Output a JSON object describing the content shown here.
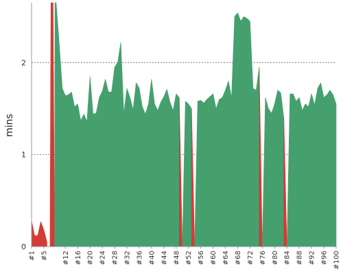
{
  "chart_data": {
    "type": "area",
    "ylabel": "mins",
    "ylim": [
      0,
      2.65
    ],
    "yticks": [
      0,
      1,
      2
    ],
    "xlim": [
      1,
      100
    ],
    "grid": "horizontal dashed",
    "colors": {
      "passed": "#46a06e",
      "failed": "#d43b35"
    },
    "x_tick_labels": [
      "#1",
      "#5",
      "#12",
      "#16",
      "#20",
      "#24",
      "#28",
      "#32",
      "#36",
      "#40",
      "#44",
      "#48",
      "#52",
      "#56",
      "#60",
      "#64",
      "#68",
      "#72",
      "#76",
      "#80",
      "#84",
      "#88",
      "#92",
      "#96",
      "#100"
    ],
    "series": [
      {
        "status": "failed",
        "points": [
          [
            1,
            0.28
          ],
          [
            2,
            0.12
          ],
          [
            3,
            0.12
          ],
          [
            4,
            0.27
          ],
          [
            5,
            0.18
          ],
          [
            6,
            0.05
          ]
        ]
      },
      {
        "status": "failed",
        "points": [
          [
            7,
            0
          ],
          [
            7.3,
            2.65
          ],
          [
            8,
            2.65
          ],
          [
            8.5,
            0
          ]
        ]
      },
      {
        "status": "passed",
        "points": [
          [
            8.5,
            0
          ],
          [
            8.6,
            2.65
          ],
          [
            9,
            2.65
          ],
          [
            10,
            2.2
          ],
          [
            11,
            1.72
          ],
          [
            12,
            1.64
          ],
          [
            13,
            1.65
          ],
          [
            14,
            1.68
          ],
          [
            15,
            1.52
          ],
          [
            16,
            1.55
          ],
          [
            17,
            1.37
          ],
          [
            18,
            1.44
          ],
          [
            19,
            1.36
          ],
          [
            20,
            1.85
          ],
          [
            21,
            1.44
          ],
          [
            22,
            1.45
          ],
          [
            23,
            1.62
          ],
          [
            24,
            1.69
          ],
          [
            25,
            1.82
          ],
          [
            26,
            1.68
          ],
          [
            27,
            1.68
          ],
          [
            28,
            1.95
          ],
          [
            29,
            2.0
          ],
          [
            30,
            2.22
          ],
          [
            31,
            1.45
          ],
          [
            32,
            1.72
          ],
          [
            33,
            1.62
          ],
          [
            34,
            1.49
          ],
          [
            35,
            1.78
          ],
          [
            36,
            1.72
          ],
          [
            37,
            1.52
          ],
          [
            38,
            1.44
          ],
          [
            39,
            1.55
          ],
          [
            40,
            1.82
          ],
          [
            41,
            1.55
          ],
          [
            42,
            1.48
          ],
          [
            43,
            1.57
          ],
          [
            44,
            1.63
          ],
          [
            45,
            1.71
          ],
          [
            46,
            1.57
          ],
          [
            47,
            1.48
          ],
          [
            48,
            1.66
          ],
          [
            49,
            1.62
          ]
        ]
      },
      {
        "status": "failed",
        "points": [
          [
            49,
            1.62
          ],
          [
            50,
            0
          ]
        ]
      },
      {
        "status": "passed",
        "points": [
          [
            50,
            0
          ],
          [
            51,
            1.58
          ],
          [
            52,
            1.55
          ],
          [
            53,
            1.5
          ]
        ]
      },
      {
        "status": "failed",
        "points": [
          [
            53,
            1.5
          ],
          [
            54,
            0
          ]
        ]
      },
      {
        "status": "passed",
        "points": [
          [
            54,
            0
          ],
          [
            55,
            1.58
          ],
          [
            56,
            1.59
          ],
          [
            57,
            1.56
          ],
          [
            58,
            1.6
          ],
          [
            59,
            1.63
          ],
          [
            60,
            1.66
          ],
          [
            61,
            1.5
          ],
          [
            62,
            1.6
          ],
          [
            63,
            1.62
          ],
          [
            64,
            1.7
          ],
          [
            65,
            1.8
          ],
          [
            66,
            1.62
          ],
          [
            67,
            2.5
          ],
          [
            68,
            2.54
          ],
          [
            69,
            2.45
          ],
          [
            70,
            2.5
          ],
          [
            71,
            2.48
          ],
          [
            72,
            2.45
          ],
          [
            73,
            1.72
          ],
          [
            74,
            1.7
          ],
          [
            75,
            1.95
          ]
        ]
      },
      {
        "status": "failed",
        "points": [
          [
            75,
            1.95
          ],
          [
            76,
            0
          ]
        ]
      },
      {
        "status": "passed",
        "points": [
          [
            76,
            0
          ],
          [
            77,
            1.62
          ],
          [
            78,
            1.5
          ],
          [
            79,
            1.45
          ],
          [
            80,
            1.55
          ],
          [
            81,
            1.7
          ],
          [
            82,
            1.67
          ],
          [
            83,
            1.4
          ]
        ]
      },
      {
        "status": "failed",
        "points": [
          [
            83,
            1.4
          ],
          [
            84,
            0
          ]
        ]
      },
      {
        "status": "passed",
        "points": [
          [
            84,
            0
          ],
          [
            85,
            1.66
          ],
          [
            86,
            1.66
          ],
          [
            87,
            1.58
          ],
          [
            88,
            1.62
          ],
          [
            89,
            1.48
          ],
          [
            90,
            1.55
          ],
          [
            91,
            1.52
          ],
          [
            92,
            1.66
          ],
          [
            93,
            1.54
          ],
          [
            94,
            1.72
          ],
          [
            95,
            1.78
          ],
          [
            96,
            1.62
          ],
          [
            97,
            1.65
          ],
          [
            98,
            1.7
          ],
          [
            99,
            1.65
          ],
          [
            100,
            1.55
          ]
        ]
      }
    ]
  }
}
